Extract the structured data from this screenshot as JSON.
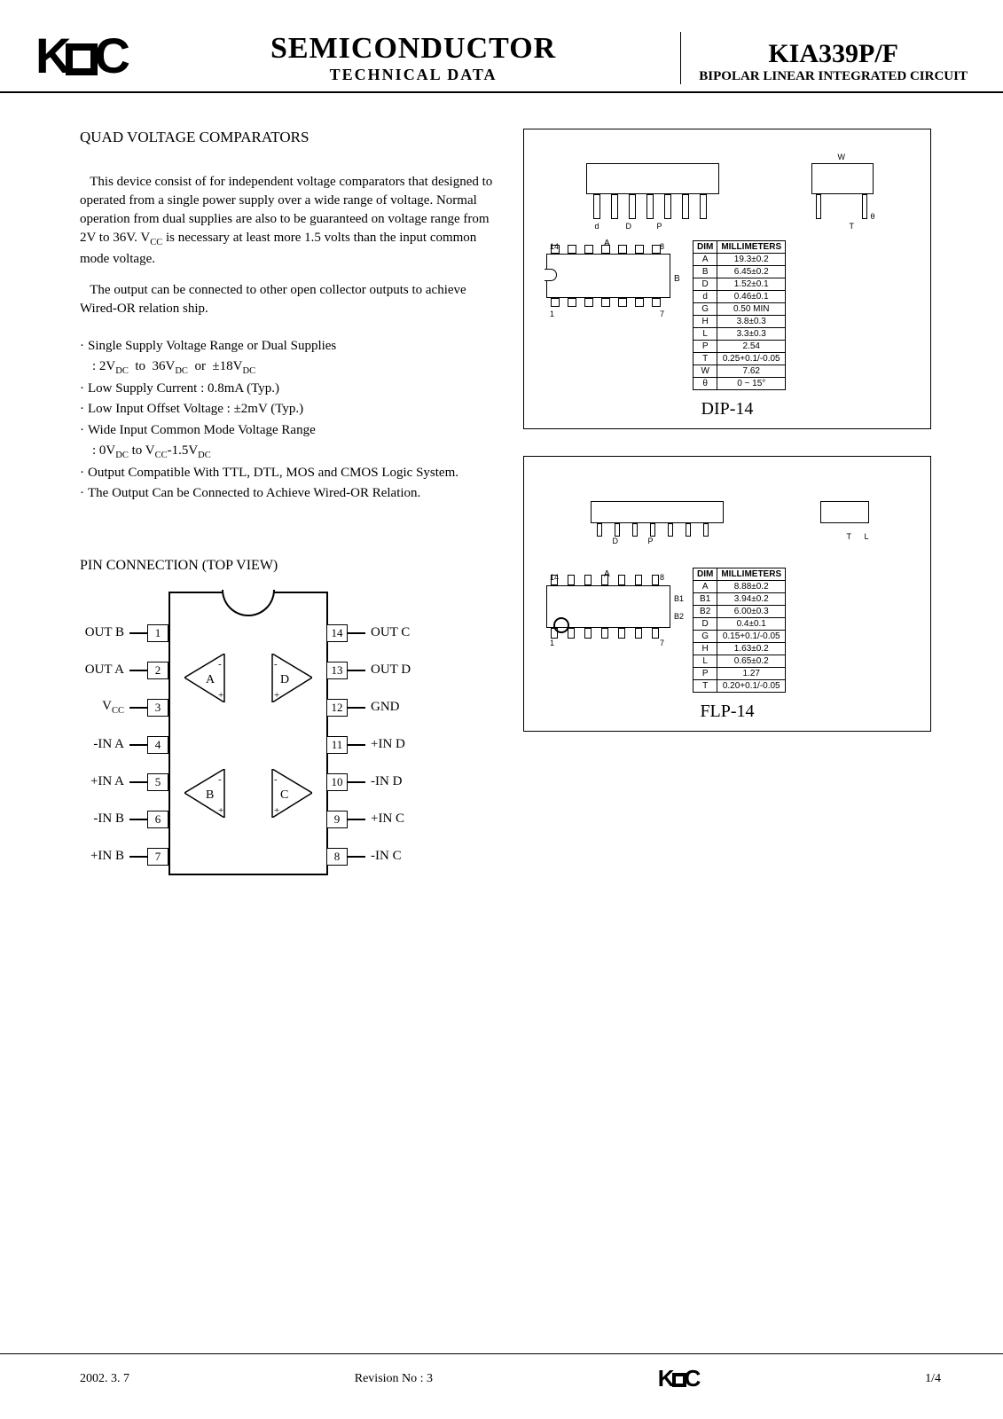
{
  "header": {
    "logo": "KEC",
    "title1": "SEMICONDUCTOR",
    "title2": "TECHNICAL DATA",
    "part": "KIA339P/F",
    "sub": "BIPOLAR LINEAR INTEGRATED CIRCUIT"
  },
  "section_title": "QUAD VOLTAGE COMPARATORS",
  "para1": "This device consist of for independent voltage comparators that designed to operated from a single power supply over a wide range of voltage. Normal operation from dual supplies are also to be guaranteed on voltage range from 2V to 36V. V",
  "para1_sub": "CC",
  "para1_cont": " is necessary at least more 1.5 volts than the input common mode voltage.",
  "para2": "The output can be connected to other open collector outputs to achieve Wired-OR relation ship.",
  "features": [
    "Single Supply Voltage Range or Dual Supplies",
    "Low Supply Current : 0.8mA (Typ.)",
    "Low Input Offset Voltage : ±2mV (Typ.)",
    "Wide Input Common Mode Voltage Range",
    "Output Compatible With TTL, DTL, MOS and CMOS Logic System.",
    "The Output Can be Connected to Achieve Wired-OR Relation."
  ],
  "feature1_indent": ": 2VDC  to  36VDC  or  ±18VDC",
  "feature4_indent": ": 0VDC to VCC-1.5VDC",
  "pin_title": "PIN CONNECTION (TOP VIEW)",
  "pins_left": [
    {
      "n": "1",
      "label": "OUT B"
    },
    {
      "n": "2",
      "label": "OUT A"
    },
    {
      "n": "3",
      "label": "VCC"
    },
    {
      "n": "4",
      "label": "-IN A"
    },
    {
      "n": "5",
      "label": "+IN A"
    },
    {
      "n": "6",
      "label": "-IN B"
    },
    {
      "n": "7",
      "label": "+IN B"
    }
  ],
  "pins_right": [
    {
      "n": "14",
      "label": "OUT C"
    },
    {
      "n": "13",
      "label": "OUT D"
    },
    {
      "n": "12",
      "label": "GND"
    },
    {
      "n": "11",
      "label": "+IN D"
    },
    {
      "n": "10",
      "label": "-IN D"
    },
    {
      "n": "9",
      "label": "+IN C"
    },
    {
      "n": "8",
      "label": "-IN C"
    }
  ],
  "dip": {
    "name": "DIP-14",
    "headers": [
      "DIM",
      "MILLIMETERS"
    ],
    "rows": [
      [
        "A",
        "19.3±0.2"
      ],
      [
        "B",
        "6.45±0.2"
      ],
      [
        "D",
        "1.52±0.1"
      ],
      [
        "d",
        "0.46±0.1"
      ],
      [
        "G",
        "0.50 MIN"
      ],
      [
        "H",
        "3.8±0.3"
      ],
      [
        "L",
        "3.3±0.3"
      ],
      [
        "P",
        "2.54"
      ],
      [
        "T",
        "0.25+0.1/-0.05"
      ],
      [
        "W",
        "7.62"
      ],
      [
        "θ",
        "0 ~ 15°"
      ]
    ]
  },
  "flp": {
    "name": "FLP-14",
    "headers": [
      "DIM",
      "MILLIMETERS"
    ],
    "rows": [
      [
        "A",
        "8.88±0.2"
      ],
      [
        "B1",
        "3.94±0.2"
      ],
      [
        "B2",
        "6.00±0.3"
      ],
      [
        "D",
        "0.4±0.1"
      ],
      [
        "G",
        "0.15+0.1/-0.05"
      ],
      [
        "H",
        "1.63±0.2"
      ],
      [
        "L",
        "0.65±0.2"
      ],
      [
        "P",
        "1.27"
      ],
      [
        "T",
        "0.20+0.1/-0.05"
      ]
    ]
  },
  "footer": {
    "date": "2002. 3. 7",
    "rev": "Revision No : 3",
    "logo": "KEC",
    "page": "1/4"
  }
}
